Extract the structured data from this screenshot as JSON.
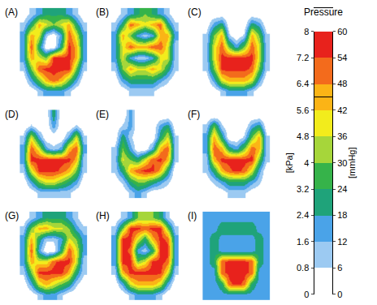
{
  "chart_data": {
    "type": "heatmap",
    "tick_labels": false,
    "panels": [
      {
        "label": "(A)",
        "z": [
          [
            0,
            1,
            2,
            3,
            3,
            3,
            2,
            1,
            0
          ],
          [
            1,
            3,
            6,
            5,
            4,
            5,
            6,
            3,
            1
          ],
          [
            2,
            6,
            5,
            1,
            0,
            2,
            7,
            5,
            2
          ],
          [
            2,
            7,
            3,
            0,
            0,
            3,
            7.5,
            6,
            2
          ],
          [
            2,
            6,
            5,
            4,
            7.5,
            7.5,
            7.5,
            6,
            2
          ],
          [
            1,
            4,
            7,
            7.5,
            7.5,
            7.5,
            7.5,
            4,
            1
          ],
          [
            0,
            2,
            4,
            6,
            7,
            6,
            4,
            2,
            0
          ],
          [
            0,
            0,
            1,
            2,
            2,
            2,
            1,
            0,
            0
          ]
        ]
      },
      {
        "label": "(B)",
        "z": [
          [
            0,
            1,
            2,
            3,
            4,
            3,
            2,
            1,
            0
          ],
          [
            1,
            3,
            7,
            6,
            5,
            6,
            7,
            3,
            1
          ],
          [
            2,
            6,
            4,
            2,
            1,
            2,
            6,
            6,
            2
          ],
          [
            2,
            5,
            7,
            6,
            6,
            7,
            7,
            5,
            1
          ],
          [
            2,
            5,
            2,
            1,
            1,
            2,
            5,
            5,
            1
          ],
          [
            1,
            4,
            6,
            5,
            5,
            6,
            5,
            3,
            1
          ],
          [
            0,
            2,
            3,
            3,
            3,
            3,
            2,
            1,
            0
          ],
          [
            0,
            0,
            1,
            1,
            1,
            1,
            0,
            0,
            0
          ]
        ]
      },
      {
        "label": "(C)",
        "z": [
          [
            0,
            0,
            0,
            0,
            0,
            0,
            0,
            0,
            0
          ],
          [
            0,
            2,
            3,
            0,
            0,
            0,
            3,
            2,
            0
          ],
          [
            1,
            4,
            6,
            1,
            0,
            1,
            6,
            4,
            1
          ],
          [
            1,
            5,
            7,
            4,
            2,
            4,
            7,
            5,
            1
          ],
          [
            1,
            5,
            7.5,
            7.5,
            7.5,
            7.5,
            7.5,
            5,
            1
          ],
          [
            1,
            4,
            7.5,
            7.5,
            7.5,
            7.5,
            7,
            4,
            1
          ],
          [
            0,
            2,
            5,
            6,
            6,
            6,
            5,
            2,
            0
          ],
          [
            0,
            0,
            1,
            2,
            2,
            2,
            1,
            0,
            0
          ]
        ]
      },
      {
        "label": "(D)",
        "z": [
          [
            0,
            0,
            0,
            0,
            3,
            0,
            0,
            0,
            0
          ],
          [
            0,
            1,
            0,
            0,
            2,
            0,
            0,
            1,
            0
          ],
          [
            1,
            5,
            2,
            0,
            0,
            0,
            2,
            5,
            1
          ],
          [
            2,
            7,
            5,
            2,
            1,
            2,
            6,
            7,
            2
          ],
          [
            2,
            7.5,
            7.5,
            7.5,
            7.5,
            7.5,
            7.5,
            6,
            1
          ],
          [
            1,
            5,
            7.5,
            7.5,
            7.5,
            7,
            6,
            4,
            1
          ],
          [
            0,
            2,
            4,
            5,
            5,
            4,
            3,
            2,
            0
          ],
          [
            0,
            0,
            1,
            1,
            1,
            1,
            1,
            0,
            0
          ]
        ]
      },
      {
        "label": "(E)",
        "z": [
          [
            0,
            0,
            2,
            0,
            0,
            0,
            0,
            0,
            0
          ],
          [
            0,
            1,
            2,
            0,
            0,
            0,
            2,
            3,
            0
          ],
          [
            0,
            3,
            1,
            0,
            0,
            0,
            3,
            5,
            1
          ],
          [
            1,
            4,
            2,
            0,
            0,
            2,
            6,
            7,
            1
          ],
          [
            1,
            5,
            4,
            3,
            5,
            7,
            7.5,
            6,
            1
          ],
          [
            1,
            3,
            6,
            7,
            7.5,
            7.5,
            6,
            3,
            0
          ],
          [
            0,
            1,
            3,
            4,
            4,
            3,
            2,
            1,
            0
          ],
          [
            0,
            0,
            1,
            2,
            1,
            0,
            0,
            0,
            0
          ]
        ]
      },
      {
        "label": "(F)",
        "z": [
          [
            0,
            0,
            0,
            0,
            0,
            0,
            0,
            0,
            0
          ],
          [
            1,
            4,
            1,
            0,
            0,
            0,
            2,
            3,
            0
          ],
          [
            2,
            6,
            3,
            0,
            0,
            1,
            4,
            6,
            1
          ],
          [
            2,
            7,
            6,
            3,
            2,
            4,
            7,
            6,
            1
          ],
          [
            1,
            6,
            7.5,
            7.5,
            7.5,
            7.5,
            7.5,
            4,
            1
          ],
          [
            1,
            3,
            6,
            7,
            7.5,
            7,
            5,
            2,
            0
          ],
          [
            0,
            1,
            2,
            3,
            3,
            3,
            2,
            1,
            0
          ],
          [
            0,
            0,
            0,
            1,
            1,
            1,
            0,
            0,
            0
          ]
        ]
      },
      {
        "label": "(G)",
        "z": [
          [
            0,
            1,
            2,
            3,
            3,
            3,
            2,
            1,
            0
          ],
          [
            1,
            4,
            6,
            6,
            5,
            5,
            4,
            2,
            1
          ],
          [
            2,
            6,
            3,
            1,
            1,
            2,
            5,
            4,
            2
          ],
          [
            2,
            7,
            2,
            0,
            0,
            3,
            7,
            5,
            2
          ],
          [
            2,
            6,
            5,
            5,
            7,
            7.5,
            7.5,
            5,
            1
          ],
          [
            1,
            4,
            7.5,
            7.5,
            7.5,
            7.5,
            6,
            3,
            1
          ],
          [
            0,
            2,
            5,
            6,
            5,
            4,
            3,
            1,
            0
          ],
          [
            0,
            0,
            1,
            2,
            2,
            1,
            0,
            0,
            0
          ]
        ]
      },
      {
        "label": "(H)",
        "z": [
          [
            0,
            1,
            2,
            4,
            4,
            4,
            3,
            1,
            0
          ],
          [
            1,
            4,
            7.5,
            7.5,
            7,
            7.5,
            7.5,
            4,
            1
          ],
          [
            2,
            7.5,
            7.5,
            5,
            3,
            6,
            7.5,
            7,
            2
          ],
          [
            2,
            7.5,
            7,
            2,
            1,
            3,
            7.5,
            7.5,
            2
          ],
          [
            2,
            7.5,
            7.5,
            4,
            5,
            7.5,
            7.5,
            7,
            2
          ],
          [
            1,
            6,
            7.5,
            7.5,
            7.5,
            7.5,
            7.5,
            5,
            1
          ],
          [
            0,
            2,
            5,
            6,
            6,
            6,
            5,
            2,
            0
          ],
          [
            0,
            0,
            1,
            2,
            2,
            2,
            1,
            0,
            0
          ]
        ]
      },
      {
        "label": "(I)",
        "z": [
          [
            2,
            2,
            2,
            2,
            2,
            2,
            2,
            2,
            2
          ],
          [
            2,
            2,
            3,
            3,
            3,
            3,
            3,
            2,
            2
          ],
          [
            2,
            3,
            2,
            2,
            2,
            2,
            2,
            3,
            2
          ],
          [
            2,
            3,
            2,
            2,
            2,
            2,
            2,
            3,
            2
          ],
          [
            2,
            3,
            7,
            7.5,
            7.5,
            7.5,
            7,
            3,
            2
          ],
          [
            2,
            2,
            7,
            7.5,
            7.5,
            7.5,
            7,
            2,
            2
          ],
          [
            2,
            2,
            3,
            7,
            7.5,
            7,
            3,
            2,
            2
          ],
          [
            2,
            2,
            2,
            2,
            2,
            2,
            2,
            2,
            2
          ]
        ]
      }
    ],
    "colorbar": {
      "title": "Pressure",
      "colors": [
        "#ffffff",
        "#9ccaf2",
        "#4aa3e8",
        "#1fa37a",
        "#36b34a",
        "#a6d63a",
        "#f2ec1c",
        "#fbb416",
        "#f36b1c",
        "#e8221c"
      ],
      "ylim": [
        0,
        8
      ],
      "yticks": [
        0,
        0.8,
        1.6,
        2.4,
        3.2,
        4,
        4.8,
        5.6,
        6.4,
        7.2,
        8
      ],
      "y_label": "[kPa]",
      "y2lim": [
        0,
        60
      ],
      "y2ticks": [
        0,
        6,
        12,
        18,
        24,
        30,
        36,
        42,
        48,
        54,
        60
      ],
      "y2_label": "[mmHg]"
    }
  }
}
